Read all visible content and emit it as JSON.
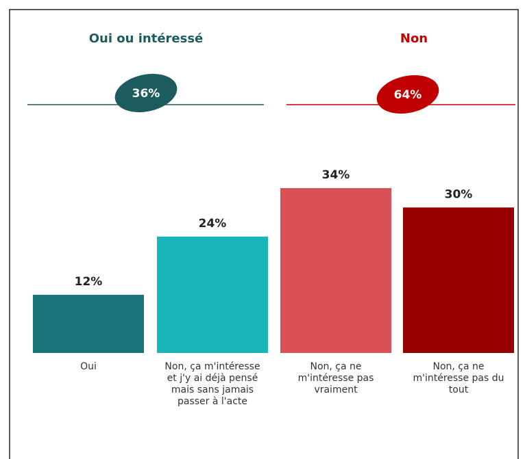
{
  "chart_data": {
    "type": "bar",
    "groups": [
      {
        "name": "Oui ou intéressé",
        "value": 36,
        "value_label": "36%",
        "color": "#1d5c5e"
      },
      {
        "name": "Non",
        "value": 64,
        "value_label": "64%",
        "color": "#c00000"
      }
    ],
    "categories": [
      "Oui",
      "Non, ça m'intéresse et j'y ai déjà pensé mais sans jamais passer à l'acte",
      "Non, ça ne m'intéresse pas vraiment",
      "Non, ça ne m'intéresse pas du tout"
    ],
    "values": [
      12,
      24,
      34,
      30
    ],
    "value_labels": [
      "12%",
      "24%",
      "34%",
      "30%"
    ],
    "colors": [
      "#1a7378",
      "#1ab5b8",
      "#d95055",
      "#960000"
    ]
  }
}
